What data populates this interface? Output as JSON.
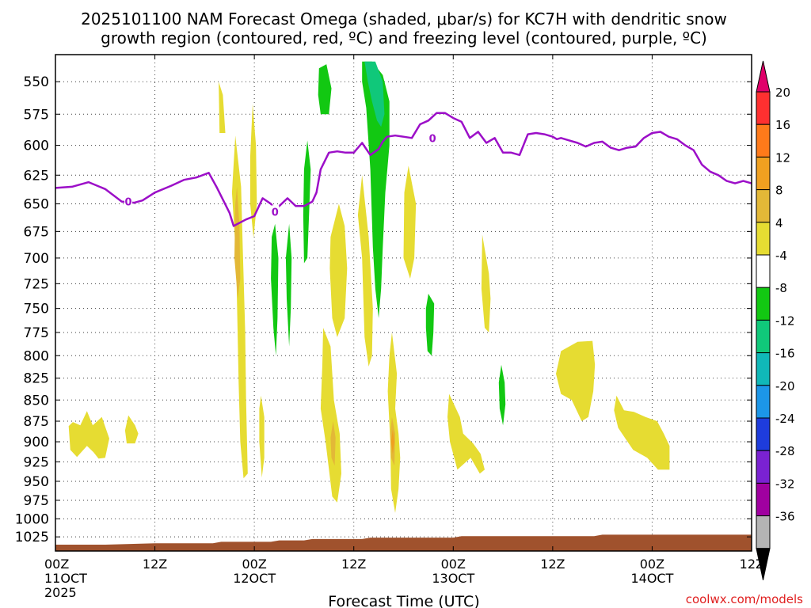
{
  "chart_data": {
    "type": "heatmap",
    "title": [
      "2025101100 NAM Forecast Omega (shaded, μbar/s) for KC7H with dendritic snow",
      "growth region (contoured, red, ºC) and freezing level (contoured, purple, ºC)"
    ],
    "xlabel": "Forecast Time (UTC)",
    "ylabel": "",
    "credit": "coolwx.com/models",
    "x_range_hours": [
      0,
      84
    ],
    "x_ticks": [
      {
        "h": 0,
        "line1": "00Z",
        "line2": "11OCT",
        "line3": "2025"
      },
      {
        "h": 12,
        "line1": "12Z",
        "line2": "",
        "line3": ""
      },
      {
        "h": 24,
        "line1": "00Z",
        "line2": "12OCT",
        "line3": ""
      },
      {
        "h": 36,
        "line1": "12Z",
        "line2": "",
        "line3": ""
      },
      {
        "h": 48,
        "line1": "00Z",
        "line2": "13OCT",
        "line3": ""
      },
      {
        "h": 60,
        "line1": "12Z",
        "line2": "",
        "line3": ""
      },
      {
        "h": 72,
        "line1": "00Z",
        "line2": "14OCT",
        "line3": ""
      },
      {
        "h": 84,
        "line1": "12Z",
        "line2": "",
        "line3": ""
      }
    ],
    "y_axis": "pressure (hPa), log scale, inverted",
    "y_range": [
      530,
      1045
    ],
    "y_ticks": [
      550,
      575,
      600,
      625,
      650,
      675,
      700,
      725,
      750,
      775,
      800,
      825,
      850,
      875,
      900,
      925,
      950,
      975,
      1000,
      1025
    ],
    "colorbar": {
      "labels": [
        "20",
        "16",
        "12",
        "8",
        "4",
        "-4",
        "-8",
        "-12",
        "-16",
        "-20",
        "-24",
        "-28",
        "-32",
        "-36"
      ],
      "colors": [
        "#e0006a",
        "#ff3030",
        "#ff7a1a",
        "#f0a020",
        "#e3b837",
        "#e6dc32",
        "#ffffff",
        "#12c812",
        "#10c87a",
        "#10b8b8",
        "#1c96e8",
        "#1e3cdc",
        "#7a22d2",
        "#a000a0",
        "#b4b4b4",
        "#000000"
      ]
    },
    "freezing_level": {
      "color": "#9c0fc8",
      "label": "0",
      "hours": [
        0,
        2,
        4,
        6,
        8,
        9.5,
        10.5,
        12,
        14,
        15.5,
        17,
        18.5,
        19.5,
        21,
        21.5,
        22,
        23,
        24,
        25,
        26,
        26.5,
        27,
        28,
        29,
        30,
        31,
        31.5,
        32,
        33,
        34,
        35,
        36,
        37,
        38,
        39,
        39.5,
        40,
        41,
        42,
        43,
        44,
        45,
        46,
        47,
        48,
        49,
        50,
        51,
        52,
        53,
        54,
        55,
        56,
        57,
        58,
        59,
        60,
        60.5,
        61,
        62,
        63,
        64,
        65,
        66,
        67,
        68,
        69,
        70,
        71,
        72,
        73,
        74,
        75,
        76,
        77,
        78,
        79,
        80,
        81,
        82,
        83,
        84
      ],
      "pressure": [
        636,
        635,
        631,
        637,
        648,
        649,
        647,
        640,
        634,
        629,
        627,
        623,
        636,
        658,
        670,
        668,
        664,
        661,
        645,
        650,
        655,
        652,
        645,
        652,
        652,
        648,
        640,
        620,
        606,
        605,
        606,
        606,
        598,
        608,
        603,
        597,
        593,
        592,
        593,
        594,
        583,
        580,
        574,
        574,
        578,
        581,
        594,
        589,
        598,
        594,
        606,
        606,
        608,
        591,
        590,
        591,
        593,
        595,
        594,
        596,
        598,
        601,
        598,
        597,
        602,
        604,
        602,
        601,
        594,
        590,
        589,
        593,
        595,
        600,
        604,
        616,
        622,
        625,
        630,
        632,
        630,
        632
      ],
      "label_points": [
        {
          "h": 8.8,
          "p": 648
        },
        {
          "h": 26.5,
          "p": 657
        },
        {
          "h": 45.5,
          "p": 594
        }
      ]
    },
    "omega_regions": [
      {
        "color": "#e6dc32",
        "pts": [
          [
            1.6,
            881
          ],
          [
            2.1,
            876
          ],
          [
            3.0,
            880
          ],
          [
            3.8,
            863
          ],
          [
            4.5,
            880
          ],
          [
            5.6,
            870
          ],
          [
            6.5,
            896
          ],
          [
            6.0,
            920
          ],
          [
            5.2,
            921
          ],
          [
            4.6,
            913
          ],
          [
            3.8,
            905
          ],
          [
            2.6,
            919
          ],
          [
            1.8,
            910
          ]
        ]
      },
      {
        "color": "#e6dc32",
        "pts": [
          [
            8.8,
            868
          ],
          [
            9.6,
            880
          ],
          [
            10.0,
            890
          ],
          [
            9.6,
            902
          ],
          [
            8.6,
            902
          ],
          [
            8.4,
            886
          ]
        ]
      },
      {
        "color": "#e6dc32",
        "pts": [
          [
            19.7,
            550
          ],
          [
            20.2,
            560
          ],
          [
            20.5,
            590
          ],
          [
            19.8,
            590
          ]
        ]
      },
      {
        "color": "#e6dc32",
        "pts": [
          [
            21.7,
            592
          ],
          [
            22.4,
            635
          ],
          [
            22.6,
            690
          ],
          [
            22.9,
            775
          ],
          [
            23.0,
            850
          ],
          [
            23.2,
            940
          ],
          [
            22.7,
            946
          ],
          [
            22.3,
            900
          ],
          [
            22.1,
            830
          ],
          [
            21.8,
            700
          ],
          [
            21.3,
            640
          ]
        ]
      },
      {
        "color": "#e6dc32",
        "pts": [
          [
            23.8,
            567
          ],
          [
            24.2,
            600
          ],
          [
            24.3,
            650
          ],
          [
            23.9,
            681
          ],
          [
            23.5,
            650
          ],
          [
            23.5,
            610
          ]
        ]
      },
      {
        "color": "#e6dc32",
        "pts": [
          [
            24.8,
            845
          ],
          [
            25.2,
            870
          ],
          [
            25.2,
            920
          ],
          [
            24.9,
            945
          ],
          [
            24.6,
            900
          ],
          [
            24.6,
            860
          ]
        ]
      },
      {
        "color": "#e6dc32",
        "pts": [
          [
            34.2,
            650
          ],
          [
            34.9,
            670
          ],
          [
            35.2,
            710
          ],
          [
            34.9,
            760
          ],
          [
            34.0,
            780
          ],
          [
            33.4,
            760
          ],
          [
            33.1,
            710
          ],
          [
            33.2,
            680
          ]
        ]
      },
      {
        "color": "#e6dc32",
        "pts": [
          [
            32.3,
            770
          ],
          [
            33.2,
            790
          ],
          [
            33.6,
            850
          ],
          [
            34.3,
            890
          ],
          [
            34.5,
            940
          ],
          [
            34.0,
            978
          ],
          [
            33.4,
            970
          ],
          [
            32.6,
            900
          ],
          [
            32.0,
            860
          ],
          [
            32.2,
            810
          ]
        ]
      },
      {
        "color": "#e6dc32",
        "pts": [
          [
            37.0,
            625
          ],
          [
            37.8,
            680
          ],
          [
            38.3,
            750
          ],
          [
            38.2,
            800
          ],
          [
            37.8,
            812
          ],
          [
            37.3,
            780
          ],
          [
            37.0,
            700
          ],
          [
            36.5,
            660
          ]
        ]
      },
      {
        "color": "#e6dc32",
        "pts": [
          [
            42.6,
            617
          ],
          [
            43.5,
            650
          ],
          [
            43.3,
            700
          ],
          [
            42.8,
            720
          ],
          [
            42.0,
            700
          ],
          [
            42.1,
            640
          ]
        ]
      },
      {
        "color": "#e6dc32",
        "pts": [
          [
            40.6,
            775
          ],
          [
            41.2,
            820
          ],
          [
            41.0,
            860
          ],
          [
            41.4,
            890
          ],
          [
            41.6,
            920
          ],
          [
            41.4,
            960
          ],
          [
            41.0,
            992
          ],
          [
            40.5,
            960
          ],
          [
            40.4,
            900
          ],
          [
            40.1,
            840
          ],
          [
            40.3,
            800
          ]
        ]
      },
      {
        "color": "#e6dc32",
        "pts": [
          [
            47.5,
            843
          ],
          [
            48.8,
            870
          ],
          [
            49.2,
            890
          ],
          [
            50.4,
            902
          ],
          [
            51.3,
            915
          ],
          [
            51.8,
            935
          ],
          [
            51.2,
            940
          ],
          [
            50.1,
            920
          ],
          [
            48.5,
            935
          ],
          [
            47.6,
            900
          ],
          [
            47.3,
            870
          ]
        ]
      },
      {
        "color": "#e6dc32",
        "pts": [
          [
            51.5,
            678
          ],
          [
            52.3,
            715
          ],
          [
            52.5,
            740
          ],
          [
            52.3,
            775
          ],
          [
            51.8,
            770
          ],
          [
            51.4,
            730
          ]
        ]
      },
      {
        "color": "#e6dc32",
        "pts": [
          [
            61.0,
            795
          ],
          [
            63.0,
            785
          ],
          [
            64.8,
            784
          ],
          [
            65.1,
            810
          ],
          [
            64.9,
            840
          ],
          [
            64.3,
            870
          ],
          [
            63.5,
            875
          ],
          [
            62.3,
            850
          ],
          [
            61.0,
            843
          ],
          [
            60.4,
            820
          ]
        ]
      },
      {
        "color": "#e6dc32",
        "pts": [
          [
            67.7,
            845
          ],
          [
            68.6,
            862
          ],
          [
            69.8,
            864
          ],
          [
            71.2,
            870
          ],
          [
            72.6,
            875
          ],
          [
            73.4,
            890
          ],
          [
            74.1,
            905
          ],
          [
            74.1,
            935
          ],
          [
            72.7,
            935
          ],
          [
            71.4,
            920
          ],
          [
            69.7,
            910
          ],
          [
            68.7,
            895
          ],
          [
            67.9,
            883
          ],
          [
            67.4,
            862
          ]
        ]
      },
      {
        "color": "#e3b837",
        "pts": [
          [
            21.9,
            635
          ],
          [
            22.2,
            670
          ],
          [
            22.3,
            720
          ],
          [
            22.0,
            740
          ],
          [
            21.6,
            700
          ],
          [
            21.7,
            650
          ]
        ]
      },
      {
        "color": "#e3b837",
        "pts": [
          [
            33.5,
            875
          ],
          [
            33.8,
            895
          ],
          [
            33.7,
            930
          ],
          [
            33.3,
            920
          ],
          [
            33.2,
            895
          ]
        ]
      },
      {
        "color": "#e3b837",
        "pts": [
          [
            40.6,
            870
          ],
          [
            41.0,
            890
          ],
          [
            40.9,
            930
          ],
          [
            40.5,
            920
          ],
          [
            40.4,
            890
          ]
        ]
      },
      {
        "color": "#f0a020",
        "pts": [
          [
            40.7,
            885
          ],
          [
            40.9,
            900
          ],
          [
            40.7,
            915
          ],
          [
            40.5,
            900
          ]
        ]
      },
      {
        "color": "#12c812",
        "pts": [
          [
            31.8,
            540
          ],
          [
            32.7,
            537
          ],
          [
            33.3,
            555
          ],
          [
            33.0,
            575
          ],
          [
            32.0,
            575
          ],
          [
            31.7,
            560
          ]
        ]
      },
      {
        "color": "#12c812",
        "pts": [
          [
            37.0,
            535
          ],
          [
            38.2,
            535
          ],
          [
            39.5,
            545
          ],
          [
            40.3,
            565
          ],
          [
            40.3,
            600
          ],
          [
            39.8,
            640
          ],
          [
            39.5,
            690
          ],
          [
            39.3,
            730
          ],
          [
            39.0,
            760
          ],
          [
            38.6,
            730
          ],
          [
            38.3,
            690
          ],
          [
            38.0,
            620
          ],
          [
            37.5,
            570
          ],
          [
            37.0,
            550
          ]
        ]
      },
      {
        "color": "#10c87a",
        "pts": [
          [
            37.3,
            535
          ],
          [
            38.6,
            535
          ],
          [
            39.5,
            550
          ],
          [
            39.7,
            575
          ],
          [
            39.3,
            585
          ],
          [
            38.8,
            580
          ],
          [
            38.2,
            565
          ],
          [
            37.7,
            550
          ]
        ]
      },
      {
        "color": "#12c812",
        "pts": [
          [
            30.4,
            596
          ],
          [
            30.8,
            620
          ],
          [
            30.6,
            660
          ],
          [
            30.4,
            700
          ],
          [
            30.0,
            705
          ],
          [
            29.9,
            660
          ],
          [
            30.0,
            620
          ]
        ]
      },
      {
        "color": "#12c812",
        "pts": [
          [
            26.5,
            668
          ],
          [
            26.9,
            700
          ],
          [
            26.8,
            760
          ],
          [
            26.6,
            800
          ],
          [
            26.3,
            770
          ],
          [
            26.0,
            720
          ],
          [
            26.1,
            680
          ]
        ]
      },
      {
        "color": "#12c812",
        "pts": [
          [
            28.2,
            668
          ],
          [
            28.5,
            700
          ],
          [
            28.4,
            750
          ],
          [
            28.2,
            790
          ],
          [
            27.9,
            740
          ],
          [
            27.8,
            700
          ]
        ]
      },
      {
        "color": "#12c812",
        "pts": [
          [
            45.0,
            735
          ],
          [
            45.7,
            745
          ],
          [
            45.6,
            775
          ],
          [
            45.4,
            800
          ],
          [
            44.9,
            795
          ],
          [
            44.7,
            770
          ],
          [
            44.7,
            750
          ]
        ]
      },
      {
        "color": "#12c812",
        "pts": [
          [
            53.8,
            810
          ],
          [
            54.2,
            830
          ],
          [
            54.3,
            855
          ],
          [
            54.0,
            880
          ],
          [
            53.6,
            860
          ],
          [
            53.5,
            830
          ]
        ]
      }
    ]
  }
}
